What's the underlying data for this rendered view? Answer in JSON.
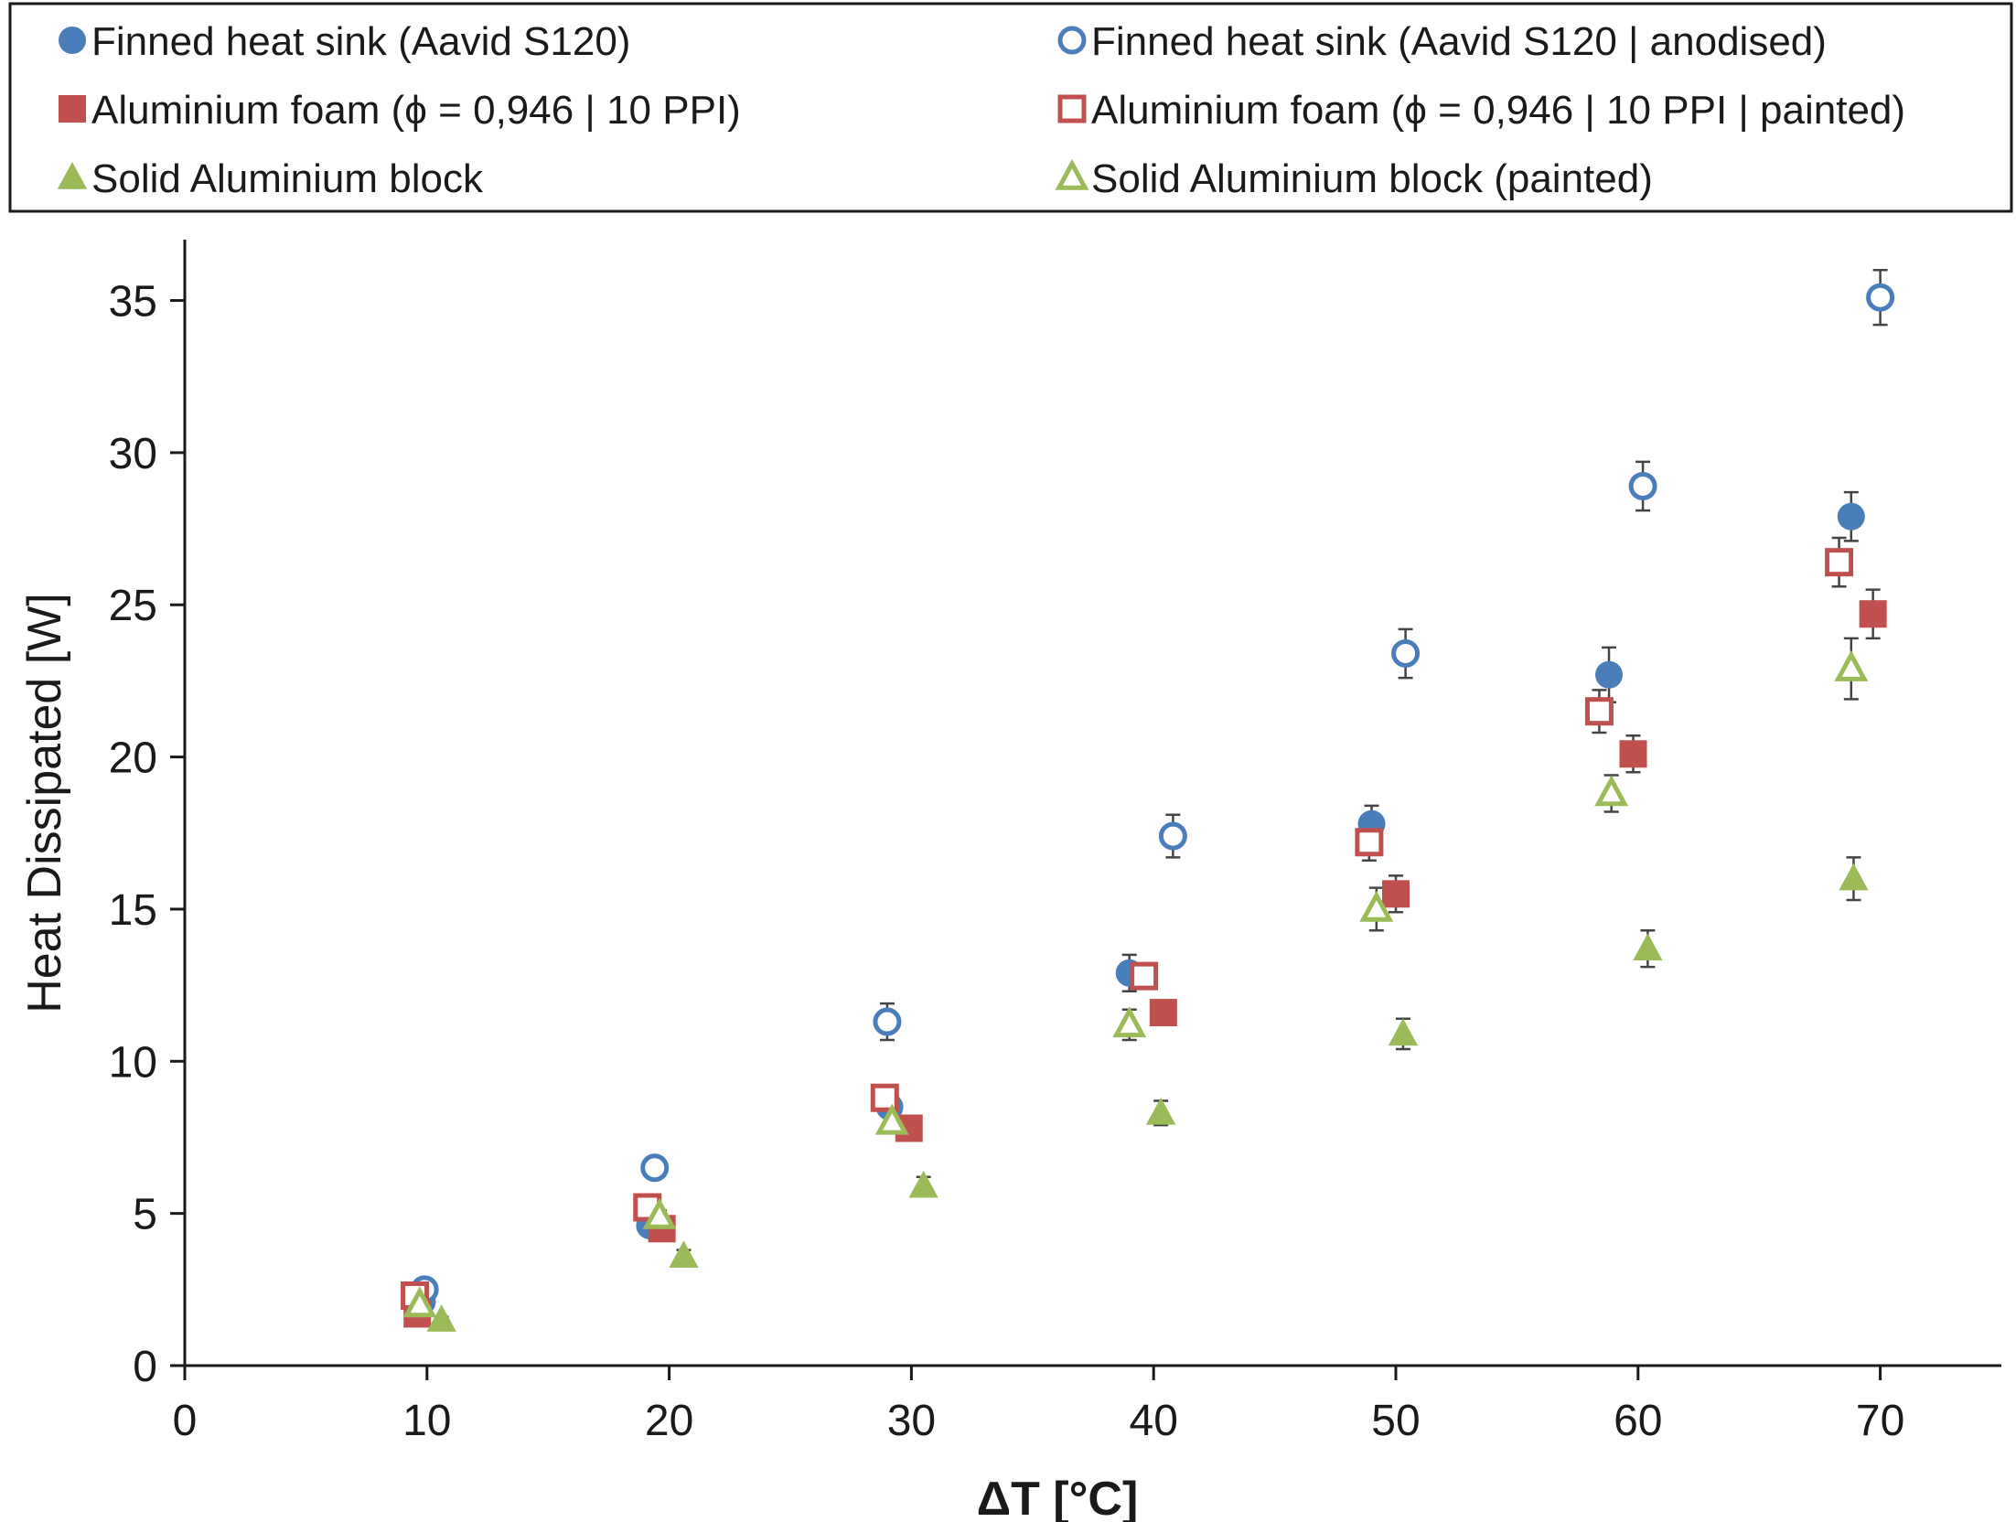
{
  "chart_data": {
    "type": "scatter",
    "xlabel": "ΔT [°C]",
    "ylabel": "Heat Dissipated [W]",
    "xlim": [
      0,
      75
    ],
    "ylim": [
      0,
      37
    ],
    "x_ticks": [
      "0",
      "10",
      "20",
      "30",
      "40",
      "50",
      "60",
      "70"
    ],
    "y_ticks": [
      "0",
      "5",
      "10",
      "15",
      "20",
      "25",
      "30",
      "35"
    ],
    "grid": false,
    "legend_position": "top",
    "series": [
      {
        "name": "Finned heat sink (Aavid S120)",
        "marker": "circle-filled",
        "color": "#4a7ebb",
        "points": [
          {
            "x": 9.8,
            "y": 2.1,
            "err": 0.1
          },
          {
            "x": 19.2,
            "y": 4.6,
            "err": 0.2
          },
          {
            "x": 29.1,
            "y": 8.5,
            "err": 0.3
          },
          {
            "x": 39.0,
            "y": 12.9,
            "err": 0.6
          },
          {
            "x": 49.0,
            "y": 17.8,
            "err": 0.6
          },
          {
            "x": 58.8,
            "y": 22.7,
            "err": 0.9
          },
          {
            "x": 68.8,
            "y": 27.9,
            "err": 0.8
          }
        ]
      },
      {
        "name": "Finned heat sink (Aavid S120 | anodised)",
        "marker": "circle-open",
        "color": "#4a7ebb",
        "points": [
          {
            "x": 9.9,
            "y": 2.5,
            "err": 0.1
          },
          {
            "x": 19.4,
            "y": 6.5,
            "err": 0.2
          },
          {
            "x": 29.0,
            "y": 11.3,
            "err": 0.6
          },
          {
            "x": 40.8,
            "y": 17.4,
            "err": 0.7
          },
          {
            "x": 50.4,
            "y": 23.4,
            "err": 0.8
          },
          {
            "x": 60.2,
            "y": 28.9,
            "err": 0.8
          },
          {
            "x": 70.0,
            "y": 35.1,
            "err": 0.9
          }
        ]
      },
      {
        "name": "Aluminium foam (ϕ = 0,946 | 10 PPI)",
        "marker": "square-filled",
        "color": "#c0504d",
        "points": [
          {
            "x": 9.6,
            "y": 1.7,
            "err": 0.1
          },
          {
            "x": 19.7,
            "y": 4.5,
            "err": 0.2
          },
          {
            "x": 29.9,
            "y": 7.8,
            "err": 0.3
          },
          {
            "x": 40.4,
            "y": 11.6,
            "err": 0.4
          },
          {
            "x": 50.0,
            "y": 15.5,
            "err": 0.6
          },
          {
            "x": 59.8,
            "y": 20.1,
            "err": 0.6
          },
          {
            "x": 69.7,
            "y": 24.7,
            "err": 0.8
          }
        ]
      },
      {
        "name": "Aluminium foam (ϕ = 0,946 | 10 PPI | painted)",
        "marker": "square-open",
        "color": "#c0504d",
        "points": [
          {
            "x": 9.5,
            "y": 2.3,
            "err": 0.1
          },
          {
            "x": 19.1,
            "y": 5.2,
            "err": 0.2
          },
          {
            "x": 28.9,
            "y": 8.8,
            "err": 0.3
          },
          {
            "x": 39.6,
            "y": 12.8,
            "err": 0.4
          },
          {
            "x": 48.9,
            "y": 17.2,
            "err": 0.6
          },
          {
            "x": 58.4,
            "y": 21.5,
            "err": 0.7
          },
          {
            "x": 68.3,
            "y": 26.4,
            "err": 0.8
          }
        ]
      },
      {
        "name": "Solid Aluminium block",
        "marker": "triangle-filled",
        "color": "#9bbb59",
        "points": [
          {
            "x": 10.6,
            "y": 1.5,
            "err": 0.1
          },
          {
            "x": 20.6,
            "y": 3.6,
            "err": 0.2
          },
          {
            "x": 30.5,
            "y": 5.9,
            "err": 0.3
          },
          {
            "x": 40.3,
            "y": 8.3,
            "err": 0.4
          },
          {
            "x": 50.3,
            "y": 10.9,
            "err": 0.5
          },
          {
            "x": 60.4,
            "y": 13.7,
            "err": 0.6
          },
          {
            "x": 68.9,
            "y": 16.0,
            "err": 0.7
          }
        ]
      },
      {
        "name": "Solid Aluminium block (painted)",
        "marker": "triangle-open",
        "color": "#9bbb59",
        "points": [
          {
            "x": 9.7,
            "y": 2.0,
            "err": 0.1
          },
          {
            "x": 19.6,
            "y": 4.9,
            "err": 0.2
          },
          {
            "x": 29.2,
            "y": 8.0,
            "err": 0.3
          },
          {
            "x": 39.0,
            "y": 11.2,
            "err": 0.5
          },
          {
            "x": 49.2,
            "y": 15.0,
            "err": 0.7
          },
          {
            "x": 58.9,
            "y": 18.8,
            "err": 0.6
          },
          {
            "x": 68.8,
            "y": 22.9,
            "err": 1.0
          }
        ]
      }
    ]
  }
}
